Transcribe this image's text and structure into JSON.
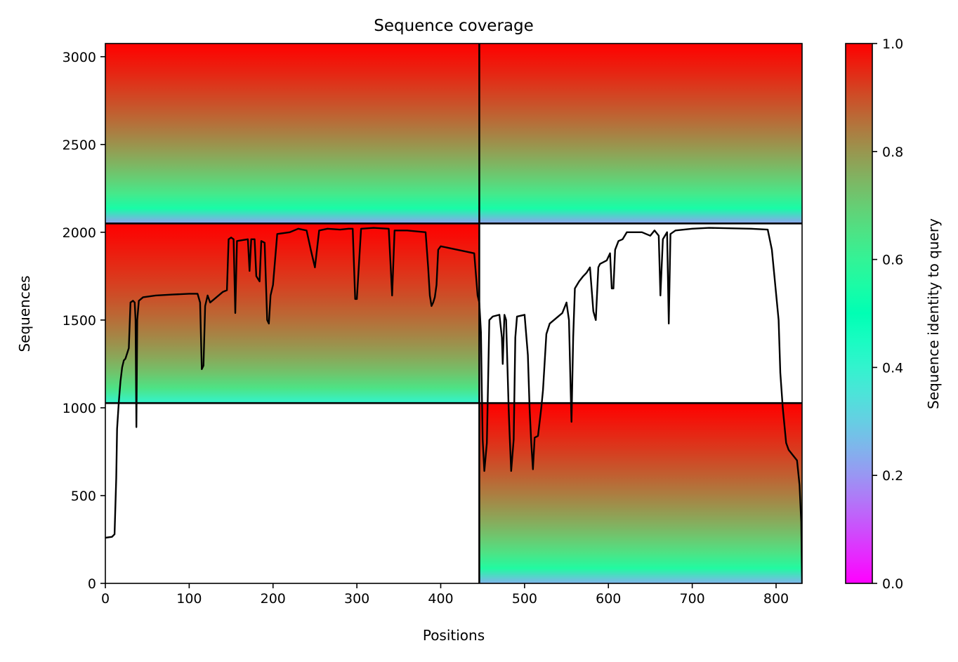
{
  "chart_data": {
    "type": "heatmap",
    "title": "Sequence coverage",
    "xlabel": "Positions",
    "ylabel": "Sequences",
    "colorbar_label": "Sequence identity to query",
    "colormap": "rainbow",
    "xlim": [
      0,
      831
    ],
    "ylim": [
      0,
      3075
    ],
    "x_ticks": [
      0,
      100,
      200,
      300,
      400,
      500,
      600,
      700,
      800
    ],
    "x_tick_labels": [
      "0",
      "100",
      "200",
      "300",
      "400",
      "500",
      "600",
      "700",
      "800"
    ],
    "y_ticks": [
      0,
      500,
      1000,
      1500,
      2000,
      2500,
      3000
    ],
    "y_tick_labels": [
      "0",
      "500",
      "1000",
      "1500",
      "2000",
      "2500",
      "3000"
    ],
    "colorbar_ticks": [
      0.0,
      0.2,
      0.4,
      0.6,
      0.8,
      1.0
    ],
    "colorbar_tick_labels": [
      "0.0",
      "0.2",
      "0.4",
      "0.6",
      "0.8",
      "1.0"
    ],
    "divider_x": [
      446
    ],
    "divider_y": [
      1027,
      2050
    ],
    "blocks": [
      {
        "x_range": [
          0,
          446
        ],
        "y_range": [
          2050,
          3075
        ],
        "identity_top": 1.0,
        "identity_bottom": 0.22
      },
      {
        "x_range": [
          446,
          831
        ],
        "y_range": [
          2050,
          3075
        ],
        "identity_top": 1.0,
        "identity_bottom": 0.22
      },
      {
        "x_range": [
          0,
          446
        ],
        "y_range": [
          1027,
          2050
        ],
        "identity_top": 1.0,
        "identity_bottom": 0.4
      },
      {
        "x_range": [
          446,
          831
        ],
        "y_range": [
          0,
          1027
        ],
        "identity_top": 1.0,
        "identity_bottom": 0.25
      }
    ],
    "coverage_line": {
      "color": "#000000",
      "points": [
        [
          0,
          260
        ],
        [
          8,
          265
        ],
        [
          11,
          280
        ],
        [
          13,
          600
        ],
        [
          14,
          880
        ],
        [
          16,
          1030
        ],
        [
          18,
          1150
        ],
        [
          20,
          1230
        ],
        [
          22,
          1270
        ],
        [
          24,
          1280
        ],
        [
          26,
          1310
        ],
        [
          28,
          1340
        ],
        [
          30,
          1600
        ],
        [
          33,
          1610
        ],
        [
          35,
          1600
        ],
        [
          36,
          1500
        ],
        [
          37,
          890
        ],
        [
          38,
          1500
        ],
        [
          40,
          1610
        ],
        [
          45,
          1630
        ],
        [
          60,
          1640
        ],
        [
          80,
          1645
        ],
        [
          100,
          1650
        ],
        [
          110,
          1650
        ],
        [
          113,
          1600
        ],
        [
          115,
          1220
        ],
        [
          117,
          1240
        ],
        [
          119,
          1580
        ],
        [
          122,
          1640
        ],
        [
          125,
          1600
        ],
        [
          130,
          1620
        ],
        [
          140,
          1660
        ],
        [
          145,
          1670
        ],
        [
          147,
          1960
        ],
        [
          150,
          1970
        ],
        [
          153,
          1960
        ],
        [
          155,
          1540
        ],
        [
          157,
          1950
        ],
        [
          170,
          1960
        ],
        [
          172,
          1780
        ],
        [
          174,
          1960
        ],
        [
          178,
          1960
        ],
        [
          180,
          1750
        ],
        [
          184,
          1720
        ],
        [
          186,
          1950
        ],
        [
          190,
          1940
        ],
        [
          193,
          1500
        ],
        [
          195,
          1480
        ],
        [
          197,
          1640
        ],
        [
          200,
          1700
        ],
        [
          205,
          1990
        ],
        [
          220,
          2000
        ],
        [
          230,
          2020
        ],
        [
          240,
          2010
        ],
        [
          245,
          1900
        ],
        [
          250,
          1800
        ],
        [
          255,
          2010
        ],
        [
          265,
          2020
        ],
        [
          280,
          2015
        ],
        [
          290,
          2020
        ],
        [
          295,
          2020
        ],
        [
          298,
          1620
        ],
        [
          300,
          1620
        ],
        [
          305,
          2020
        ],
        [
          320,
          2025
        ],
        [
          338,
          2020
        ],
        [
          342,
          1640
        ],
        [
          345,
          2010
        ],
        [
          360,
          2010
        ],
        [
          382,
          2000
        ],
        [
          385,
          1800
        ],
        [
          387,
          1640
        ],
        [
          389,
          1580
        ],
        [
          391,
          1600
        ],
        [
          393,
          1630
        ],
        [
          395,
          1700
        ],
        [
          397,
          1900
        ],
        [
          400,
          1920
        ],
        [
          420,
          1900
        ],
        [
          440,
          1880
        ],
        [
          444,
          1640
        ],
        [
          446,
          1600
        ],
        [
          448,
          1430
        ],
        [
          449,
          1100
        ],
        [
          450,
          820
        ],
        [
          452,
          640
        ],
        [
          455,
          800
        ],
        [
          458,
          1500
        ],
        [
          462,
          1520
        ],
        [
          470,
          1530
        ],
        [
          473,
          1400
        ],
        [
          474,
          1250
        ],
        [
          476,
          1530
        ],
        [
          478,
          1500
        ],
        [
          481,
          1000
        ],
        [
          482,
          870
        ],
        [
          484,
          640
        ],
        [
          487,
          820
        ],
        [
          489,
          1400
        ],
        [
          491,
          1520
        ],
        [
          500,
          1530
        ],
        [
          504,
          1300
        ],
        [
          506,
          1000
        ],
        [
          508,
          800
        ],
        [
          510,
          650
        ],
        [
          512,
          830
        ],
        [
          516,
          840
        ],
        [
          520,
          1000
        ],
        [
          522,
          1100
        ],
        [
          526,
          1420
        ],
        [
          530,
          1480
        ],
        [
          540,
          1520
        ],
        [
          545,
          1540
        ],
        [
          550,
          1600
        ],
        [
          553,
          1500
        ],
        [
          555,
          1100
        ],
        [
          556,
          920
        ],
        [
          558,
          1400
        ],
        [
          560,
          1680
        ],
        [
          565,
          1720
        ],
        [
          570,
          1750
        ],
        [
          574,
          1770
        ],
        [
          578,
          1800
        ],
        [
          582,
          1550
        ],
        [
          585,
          1500
        ],
        [
          588,
          1800
        ],
        [
          590,
          1820
        ],
        [
          598,
          1840
        ],
        [
          602,
          1880
        ],
        [
          604,
          1680
        ],
        [
          606,
          1680
        ],
        [
          608,
          1900
        ],
        [
          612,
          1950
        ],
        [
          617,
          1960
        ],
        [
          622,
          2000
        ],
        [
          640,
          2000
        ],
        [
          650,
          1980
        ],
        [
          655,
          2010
        ],
        [
          660,
          1980
        ],
        [
          662,
          1640
        ],
        [
          665,
          1960
        ],
        [
          670,
          2000
        ],
        [
          672,
          1480
        ],
        [
          674,
          1990
        ],
        [
          680,
          2010
        ],
        [
          700,
          2020
        ],
        [
          720,
          2025
        ],
        [
          770,
          2020
        ],
        [
          790,
          2015
        ],
        [
          795,
          1900
        ],
        [
          800,
          1650
        ],
        [
          803,
          1500
        ],
        [
          805,
          1200
        ],
        [
          808,
          1000
        ],
        [
          812,
          800
        ],
        [
          815,
          760
        ],
        [
          825,
          700
        ],
        [
          828,
          560
        ],
        [
          830,
          350
        ],
        [
          831,
          0
        ]
      ]
    }
  }
}
